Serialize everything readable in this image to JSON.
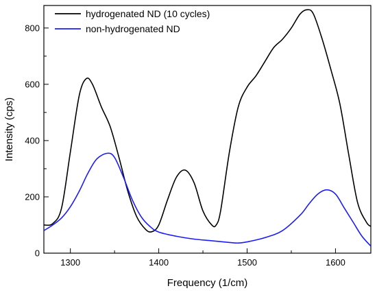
{
  "chart_data": {
    "type": "line",
    "xlabel": "Frequency (1/cm)",
    "ylabel": "Intensity (cps)",
    "xlim": [
      1270,
      1640
    ],
    "ylim": [
      0,
      880
    ],
    "xticks": [
      1300,
      1400,
      1500,
      1600
    ],
    "yticks": [
      0,
      200,
      400,
      600,
      800
    ],
    "legend_position": "top-left",
    "grid": false,
    "series": [
      {
        "name": "hydrogenated ND (10 cycles)",
        "color": "#000000",
        "x": [
          1270,
          1280,
          1290,
          1300,
          1310,
          1318,
          1325,
          1335,
          1345,
          1355,
          1365,
          1375,
          1385,
          1392,
          1400,
          1410,
          1420,
          1430,
          1440,
          1450,
          1460,
          1465,
          1470,
          1480,
          1490,
          1500,
          1510,
          1520,
          1530,
          1540,
          1550,
          1560,
          1568,
          1575,
          1585,
          1595,
          1605,
          1615,
          1625,
          1635,
          1640
        ],
        "y": [
          100,
          105,
          160,
          360,
          560,
          620,
          600,
          520,
          450,
          340,
          220,
          130,
          85,
          76,
          100,
          190,
          270,
          295,
          250,
          150,
          100,
          100,
          150,
          360,
          520,
          590,
          630,
          680,
          730,
          760,
          800,
          850,
          865,
          850,
          760,
          650,
          530,
          350,
          180,
          110,
          95
        ]
      },
      {
        "name": "non-hydrogenated ND",
        "color": "#1a1aff",
        "x": [
          1270,
          1280,
          1290,
          1300,
          1310,
          1320,
          1330,
          1342,
          1350,
          1360,
          1370,
          1380,
          1390,
          1400,
          1420,
          1440,
          1460,
          1480,
          1490,
          1500,
          1520,
          1540,
          1560,
          1570,
          1580,
          1590,
          1600,
          1610,
          1620,
          1630,
          1640
        ],
        "y": [
          80,
          100,
          125,
          165,
          220,
          285,
          335,
          355,
          340,
          270,
          190,
          130,
          95,
          75,
          60,
          50,
          44,
          38,
          36,
          40,
          55,
          80,
          135,
          175,
          210,
          225,
          210,
          160,
          110,
          60,
          25
        ]
      }
    ]
  }
}
